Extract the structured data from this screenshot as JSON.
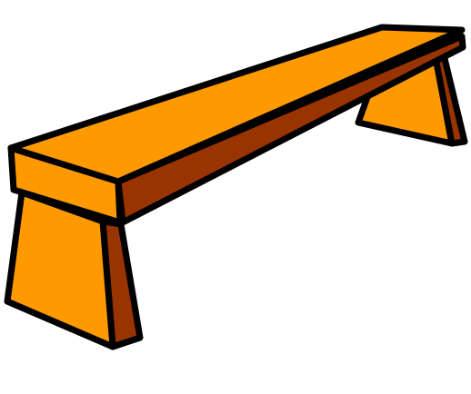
{
  "scene": {
    "subject": "bench-icon",
    "colors": {
      "background": "#ffffff",
      "wood_light": "#ff9900",
      "wood_dark": "#993300",
      "outline": "#000000"
    }
  }
}
